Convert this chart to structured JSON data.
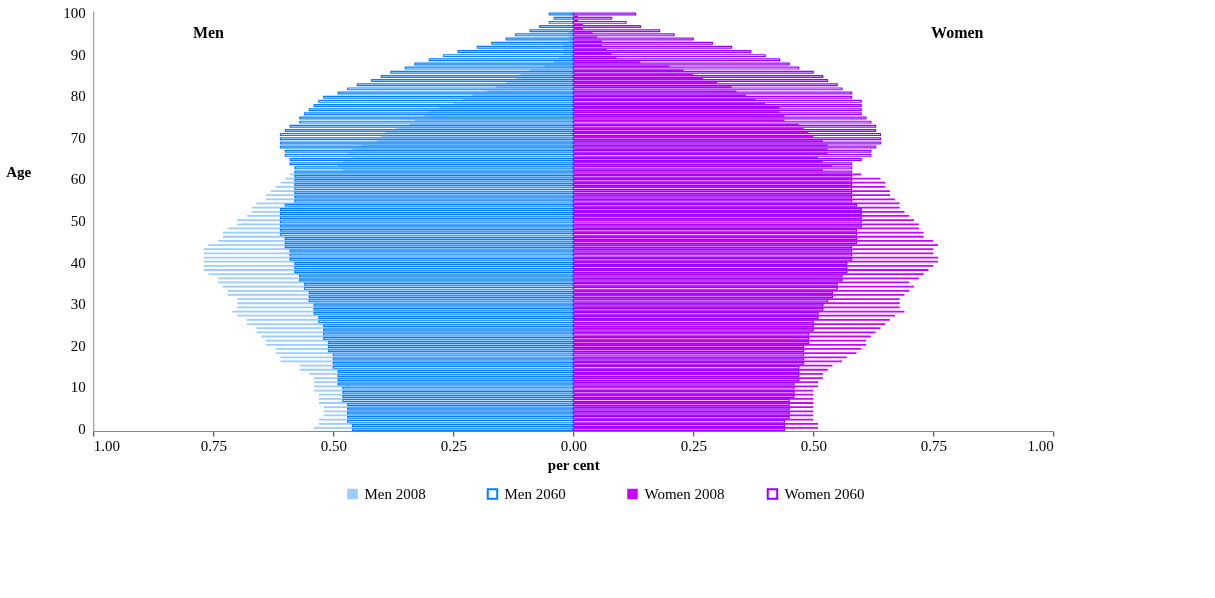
{
  "chart_data": {
    "type": "bar",
    "orientation": "horizontal",
    "xlabel": "per cent",
    "ylabel": "Age",
    "annotations": [
      "Men",
      "Women"
    ],
    "categories": [
      "100",
      null,
      null,
      null,
      null,
      null,
      null,
      null,
      null,
      null,
      "90",
      null,
      null,
      null,
      null,
      null,
      null,
      null,
      null,
      null,
      "80",
      null,
      null,
      null,
      null,
      null,
      null,
      null,
      null,
      null,
      "70",
      null,
      null,
      null,
      null,
      null,
      null,
      null,
      null,
      null,
      "60",
      null,
      null,
      null,
      null,
      null,
      null,
      null,
      null,
      null,
      "50",
      null,
      null,
      null,
      null,
      null,
      null,
      null,
      null,
      null,
      "40",
      null,
      null,
      null,
      null,
      null,
      null,
      null,
      null,
      null,
      "30",
      null,
      null,
      null,
      null,
      null,
      null,
      null,
      null,
      null,
      "20",
      null,
      null,
      null,
      null,
      null,
      null,
      null,
      null,
      null,
      "10",
      null,
      null,
      null,
      null,
      null,
      null,
      null,
      null,
      null,
      "0"
    ],
    "xlim": [
      -1,
      1
    ],
    "xticks": [
      {
        "value": -1,
        "label": "1.00"
      },
      {
        "value": -0.75,
        "label": "0.75"
      },
      {
        "value": -0.5,
        "label": "0.50"
      },
      {
        "value": -0.25,
        "label": "0.25"
      },
      {
        "value": 0,
        "label": "0.00"
      },
      {
        "value": 0.25,
        "label": "0.25"
      },
      {
        "value": 0.5,
        "label": "0.50"
      },
      {
        "value": 0.75,
        "label": "0.75"
      },
      {
        "value": 1,
        "label": "1.00"
      }
    ],
    "legend": "bottom",
    "series": [
      {
        "name": "Men 2008",
        "color": "#99ccff",
        "values": [
          0,
          0,
          0,
          0,
          0,
          -0.01,
          -0.01,
          -0.01,
          -0.02,
          -0.02,
          -0.02,
          -0.03,
          -0.04,
          -0.06,
          -0.09,
          -0.11,
          -0.12,
          -0.14,
          -0.16,
          -0.18,
          -0.21,
          -0.23,
          -0.25,
          -0.28,
          -0.3,
          -0.31,
          -0.33,
          -0.34,
          -0.37,
          -0.39,
          -0.4,
          -0.41,
          -0.44,
          -0.46,
          -0.47,
          -0.46,
          -0.48,
          -0.49,
          -0.48,
          -0.59,
          -0.6,
          -0.61,
          -0.62,
          -0.63,
          -0.64,
          -0.64,
          -0.66,
          -0.67,
          -0.67,
          -0.68,
          -0.7,
          -0.7,
          -0.72,
          -0.73,
          -0.73,
          -0.74,
          -0.76,
          -0.77,
          -0.77,
          -0.77,
          -0.77,
          -0.77,
          -0.77,
          -0.76,
          -0.74,
          -0.74,
          -0.73,
          -0.72,
          -0.72,
          -0.7,
          -0.7,
          -0.7,
          -0.71,
          -0.7,
          -0.68,
          -0.68,
          -0.66,
          -0.66,
          -0.65,
          -0.64,
          -0.64,
          -0.62,
          -0.62,
          -0.61,
          -0.61,
          -0.57,
          -0.57,
          -0.55,
          -0.54,
          -0.54,
          -0.54,
          -0.54,
          -0.53,
          -0.53,
          -0.53,
          -0.52,
          -0.52,
          -0.52,
          -0.53,
          -0.53,
          -0.54
        ]
      },
      {
        "name": "Men 2060",
        "color": "#0080ff",
        "line_style": "solid",
        "values": [
          -0.05,
          -0.04,
          -0.05,
          -0.07,
          -0.09,
          -0.12,
          -0.14,
          -0.17,
          -0.2,
          -0.24,
          -0.27,
          -0.3,
          -0.33,
          -0.35,
          -0.38,
          -0.4,
          -0.42,
          -0.45,
          -0.47,
          -0.49,
          -0.52,
          -0.53,
          -0.54,
          -0.55,
          -0.56,
          -0.57,
          -0.57,
          -0.59,
          -0.6,
          -0.61,
          -0.61,
          -0.61,
          -0.61,
          -0.6,
          -0.6,
          -0.59,
          -0.59,
          -0.58,
          -0.58,
          -0.58,
          -0.58,
          -0.58,
          -0.58,
          -0.58,
          -0.58,
          -0.58,
          -0.6,
          -0.61,
          -0.61,
          -0.61,
          -0.61,
          -0.61,
          -0.61,
          -0.61,
          -0.6,
          -0.6,
          -0.6,
          -0.59,
          -0.59,
          -0.59,
          -0.58,
          -0.58,
          -0.58,
          -0.57,
          -0.57,
          -0.56,
          -0.56,
          -0.55,
          -0.55,
          -0.55,
          -0.54,
          -0.54,
          -0.54,
          -0.53,
          -0.53,
          -0.52,
          -0.52,
          -0.52,
          -0.52,
          -0.51,
          -0.51,
          -0.51,
          -0.5,
          -0.5,
          -0.5,
          -0.5,
          -0.49,
          -0.49,
          -0.49,
          -0.49,
          -0.48,
          -0.48,
          -0.48,
          -0.48,
          -0.47,
          -0.47,
          -0.47,
          -0.47,
          -0.47,
          -0.46,
          -0.46
        ]
      },
      {
        "name": "Women 2008",
        "color": "#cc00ff",
        "values": [
          0,
          0.01,
          0.01,
          0.02,
          0.02,
          0.04,
          0.05,
          0.06,
          0.06,
          0.07,
          0.08,
          0.09,
          0.14,
          0.2,
          0.23,
          0.25,
          0.27,
          0.3,
          0.33,
          0.34,
          0.36,
          0.38,
          0.4,
          0.43,
          0.43,
          0.44,
          0.44,
          0.47,
          0.48,
          0.49,
          0.5,
          0.52,
          0.53,
          0.53,
          0.53,
          0.51,
          0.52,
          0.54,
          0.52,
          0.6,
          0.64,
          0.65,
          0.65,
          0.66,
          0.66,
          0.67,
          0.68,
          0.68,
          0.69,
          0.7,
          0.71,
          0.72,
          0.72,
          0.73,
          0.73,
          0.75,
          0.76,
          0.75,
          0.75,
          0.76,
          0.76,
          0.75,
          0.74,
          0.73,
          0.72,
          0.7,
          0.71,
          0.7,
          0.69,
          0.68,
          0.68,
          0.68,
          0.69,
          0.67,
          0.66,
          0.65,
          0.64,
          0.63,
          0.62,
          0.61,
          0.61,
          0.6,
          0.59,
          0.57,
          0.56,
          0.54,
          0.53,
          0.52,
          0.52,
          0.51,
          0.51,
          0.5,
          0.5,
          0.5,
          0.5,
          0.5,
          0.5,
          0.5,
          0.5,
          0.51,
          0.51
        ]
      },
      {
        "name": "Women 2060",
        "color": "#9900ff",
        "line_style": "solid",
        "values": [
          0.13,
          0.08,
          0.11,
          0.14,
          0.18,
          0.21,
          0.25,
          0.29,
          0.33,
          0.37,
          0.4,
          0.43,
          0.45,
          0.47,
          0.5,
          0.52,
          0.53,
          0.55,
          0.56,
          0.58,
          0.58,
          0.6,
          0.6,
          0.6,
          0.6,
          0.61,
          0.62,
          0.63,
          0.63,
          0.64,
          0.64,
          0.64,
          0.63,
          0.62,
          0.62,
          0.6,
          0.58,
          0.58,
          0.58,
          0.58,
          0.58,
          0.58,
          0.58,
          0.58,
          0.58,
          0.58,
          0.59,
          0.6,
          0.6,
          0.6,
          0.6,
          0.6,
          0.59,
          0.59,
          0.59,
          0.59,
          0.58,
          0.58,
          0.58,
          0.58,
          0.57,
          0.57,
          0.57,
          0.56,
          0.56,
          0.55,
          0.55,
          0.54,
          0.54,
          0.53,
          0.52,
          0.52,
          0.51,
          0.51,
          0.5,
          0.5,
          0.5,
          0.49,
          0.49,
          0.49,
          0.48,
          0.48,
          0.48,
          0.48,
          0.48,
          0.47,
          0.47,
          0.47,
          0.47,
          0.46,
          0.46,
          0.46,
          0.46,
          0.45,
          0.45,
          0.45,
          0.45,
          0.45,
          0.44,
          0.44,
          0.44
        ]
      }
    ]
  }
}
